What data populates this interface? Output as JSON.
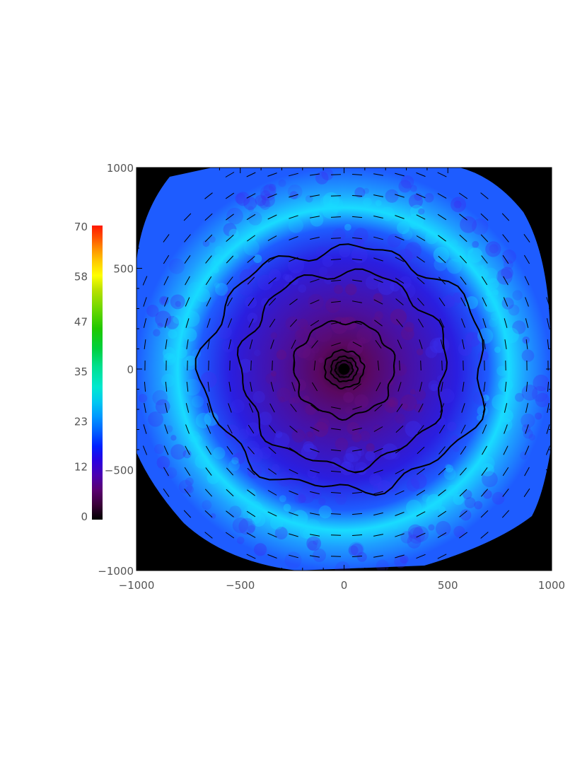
{
  "chart_data": {
    "type": "heatmap",
    "title": "",
    "xlabel": "",
    "ylabel": "",
    "xlim": [
      -1000,
      1000
    ],
    "ylim": [
      -1000,
      1000
    ],
    "x_ticks": [
      -1000,
      -500,
      0,
      500,
      1000
    ],
    "y_ticks": [
      -1000,
      -500,
      0,
      500,
      1000
    ],
    "x_tick_labels": [
      "−1000",
      "−500",
      "0",
      "500",
      "1000"
    ],
    "y_tick_labels": [
      "−1000",
      "−500",
      "0",
      "500",
      "1000"
    ],
    "colorbar": {
      "range": [
        0,
        70
      ],
      "tick_values": [
        0,
        12,
        23,
        35,
        47,
        58,
        70
      ],
      "tick_labels": [
        "0",
        "12",
        "23",
        "35",
        "47",
        "58",
        "70"
      ],
      "colors": [
        "#000000",
        "#3a0038",
        "#5a0070",
        "#4b00b0",
        "#2a00e0",
        "#0020ff",
        "#0060ff",
        "#0098ff",
        "#00c8f0",
        "#00e8d0",
        "#00e090",
        "#00d040",
        "#20c800",
        "#70d800",
        "#b8e000",
        "#ffff00",
        "#ffc800",
        "#ff9000",
        "#ff5000",
        "#ff1800"
      ]
    },
    "map": {
      "background_color": "#000000",
      "outer_color": "#1e5cff",
      "ring_color": "#19dcff",
      "inner_color": "#2212d0",
      "core_color": "#5a0860"
    },
    "contour_radii": [
      40,
      60,
      90,
      230,
      470,
      630
    ],
    "vector_field": "azimuthal",
    "grid": false
  }
}
